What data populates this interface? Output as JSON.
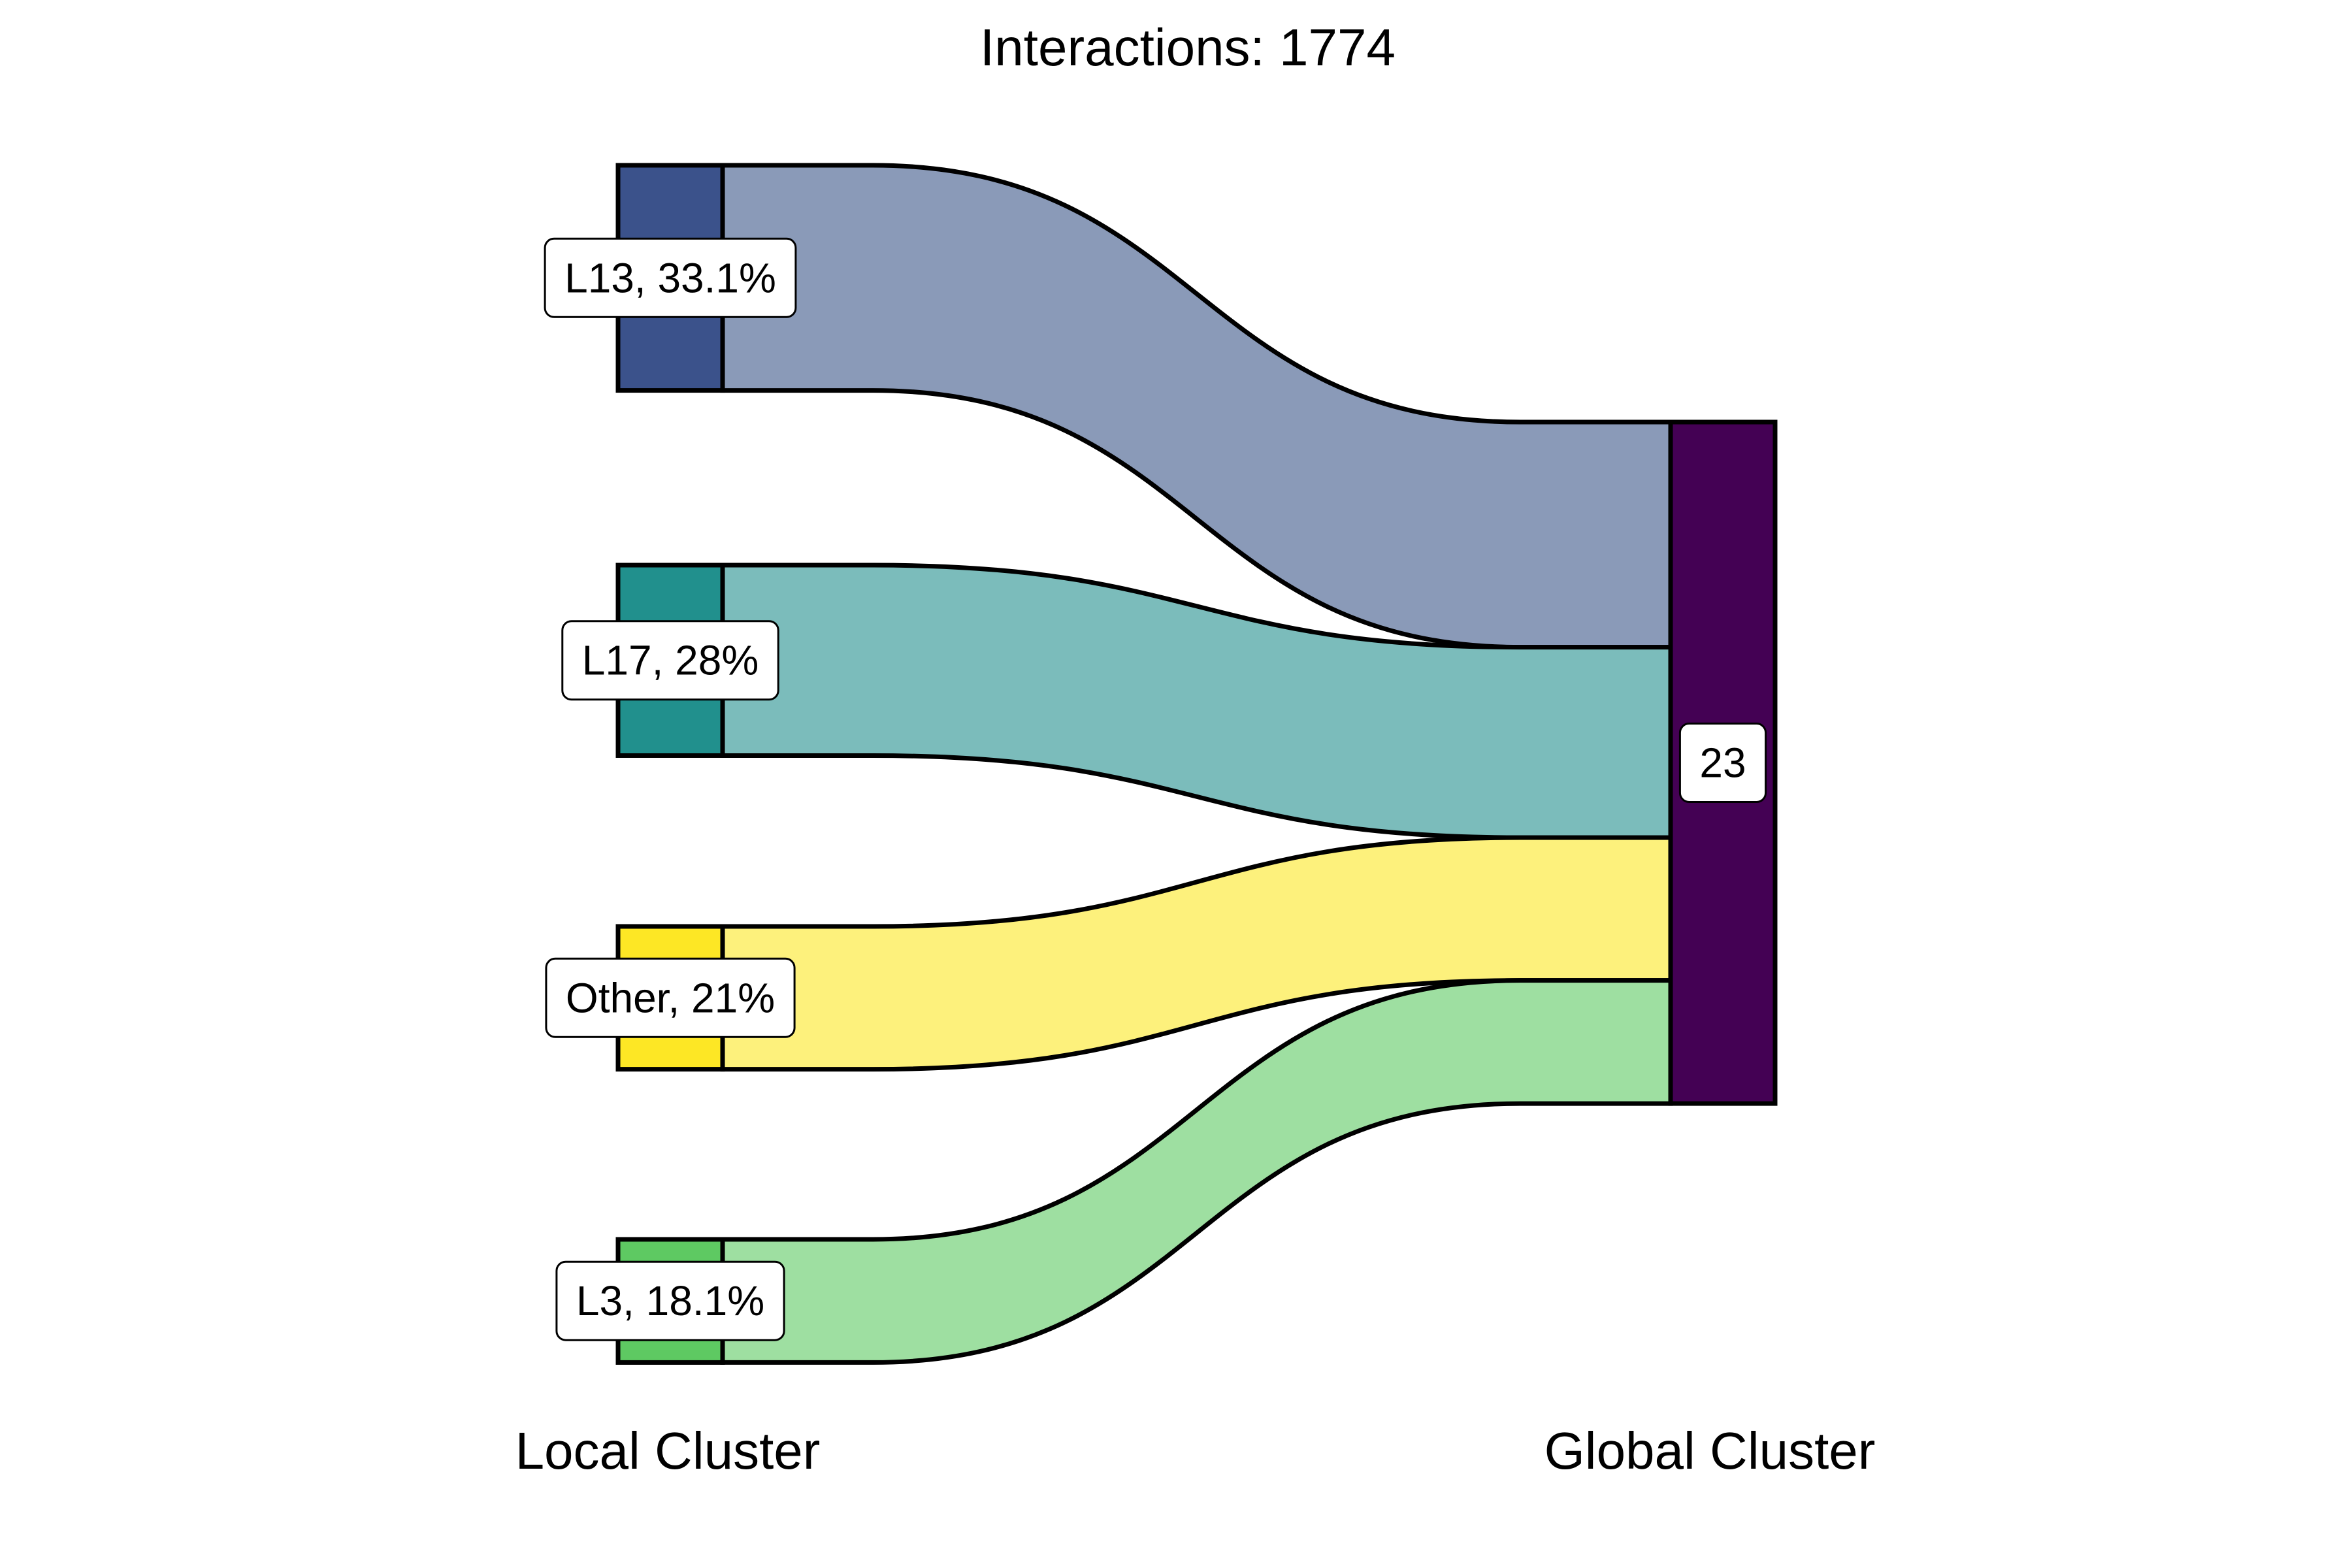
{
  "chart_data": {
    "type": "sankey",
    "title": "Interactions: 1774",
    "axes": [
      "Local Cluster",
      "Global Cluster"
    ],
    "source_nodes": [
      {
        "name": "L13",
        "percent": 33.1,
        "label": "L13, 33.1%",
        "color": "#3b528b",
        "flow_color": "#8a9ab8"
      },
      {
        "name": "L17",
        "percent": 28,
        "label": "L17, 28%",
        "color": "#21908d",
        "flow_color": "#7bbcbb"
      },
      {
        "name": "Other",
        "percent": 21,
        "label": "Other, 21%",
        "color": "#fde725",
        "flow_color": "#fdf17c"
      },
      {
        "name": "L3",
        "percent": 18.1,
        "label": "L3, 18.1%",
        "color": "#5ec962",
        "flow_color": "#9edfa1"
      }
    ],
    "target_nodes": [
      {
        "name": "23",
        "label": "23",
        "color": "#440154"
      }
    ],
    "links": [
      {
        "source": "L13",
        "target": "23",
        "percent": 33.1
      },
      {
        "source": "L17",
        "target": "23",
        "percent": 28
      },
      {
        "source": "Other",
        "target": "23",
        "percent": 21
      },
      {
        "source": "L3",
        "target": "23",
        "percent": 18.1
      }
    ]
  }
}
